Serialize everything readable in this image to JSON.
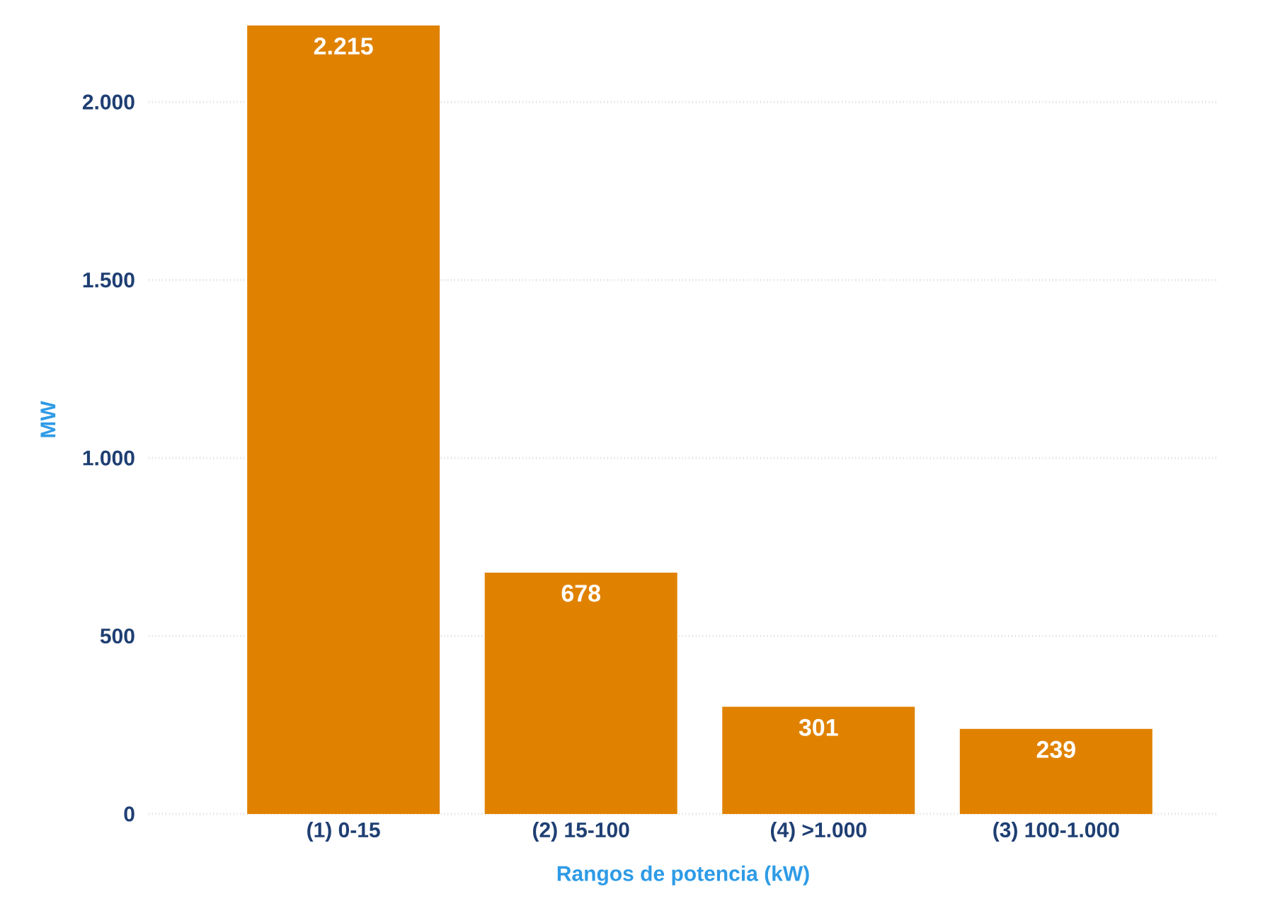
{
  "chart_data": {
    "type": "bar",
    "xlabel": "Rangos de potencia (kW)",
    "ylabel": "MW",
    "categories": [
      "(1) 0-15",
      "(2) 15-100",
      "(4) >1.000",
      "(3) 100-1.000"
    ],
    "values": [
      2215,
      678,
      301,
      239
    ],
    "value_labels": [
      "2.215",
      "678",
      "301",
      "239"
    ],
    "color": "#e08200",
    "ylim": [
      0,
      2215
    ],
    "yticks": [
      0,
      500,
      {
        "value": 1000,
        "label": "1.000"
      },
      {
        "value": 1500,
        "label": "1.500"
      },
      {
        "value": 2000,
        "label": "2.000"
      }
    ],
    "grid": "y"
  }
}
